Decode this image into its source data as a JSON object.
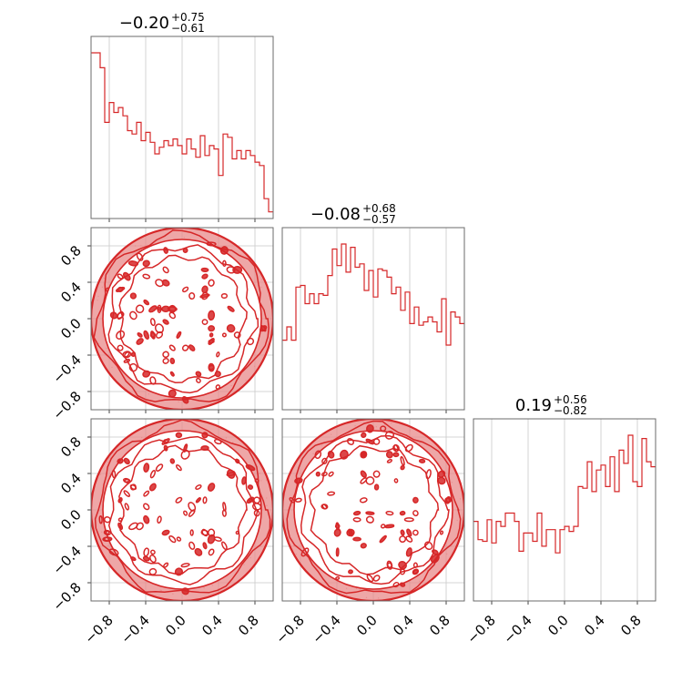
{
  "chart_data": {
    "type": "corner",
    "color": "#d62728",
    "fill_color": "#e8898a",
    "grid": true,
    "range": [
      -1.0,
      1.0
    ],
    "tick_values": [
      -0.8,
      -0.4,
      0.0,
      0.4,
      0.8
    ],
    "tick_labels": [
      "−0.8",
      "−0.4",
      "0.0",
      "0.4",
      "0.8"
    ],
    "parameters": [
      {
        "id": "p0",
        "title_main": "−0.20",
        "title_plus": "+0.75",
        "title_minus": "−0.61"
      },
      {
        "id": "p1",
        "title_main": "−0.08",
        "title_plus": "+0.68",
        "title_minus": "−0.57"
      },
      {
        "id": "p2",
        "title_main": "0.19",
        "title_plus": "+0.56",
        "title_minus": "−0.82"
      }
    ],
    "histograms": [
      {
        "param": "p0",
        "bins": [
          -1.0,
          -0.95,
          -0.9,
          -0.85,
          -0.8,
          -0.75,
          -0.7,
          -0.65,
          -0.6,
          -0.55,
          -0.5,
          -0.45,
          -0.4,
          -0.35,
          -0.3,
          -0.25,
          -0.2,
          -0.15,
          -0.1,
          -0.05,
          0.0,
          0.05,
          0.1,
          0.15,
          0.2,
          0.25,
          0.3,
          0.35,
          0.4,
          0.45,
          0.5,
          0.55,
          0.6,
          0.65,
          0.7,
          0.75,
          0.8,
          0.85,
          0.9,
          0.95,
          1.0
        ],
        "counts": [
          1.0,
          1.0,
          0.91,
          0.58,
          0.7,
          0.64,
          0.67,
          0.62,
          0.53,
          0.51,
          0.58,
          0.47,
          0.52,
          0.46,
          0.39,
          0.43,
          0.47,
          0.44,
          0.48,
          0.44,
          0.39,
          0.48,
          0.42,
          0.37,
          0.5,
          0.38,
          0.44,
          0.42,
          0.26,
          0.51,
          0.49,
          0.36,
          0.41,
          0.36,
          0.41,
          0.38,
          0.34,
          0.32,
          0.12,
          0.04
        ]
      },
      {
        "param": "p1",
        "bins": [
          -1.0,
          -0.95,
          -0.9,
          -0.85,
          -0.8,
          -0.75,
          -0.7,
          -0.65,
          -0.6,
          -0.55,
          -0.5,
          -0.45,
          -0.4,
          -0.35,
          -0.3,
          -0.25,
          -0.2,
          -0.15,
          -0.1,
          -0.05,
          0.0,
          0.05,
          0.1,
          0.15,
          0.2,
          0.25,
          0.3,
          0.35,
          0.4,
          0.45,
          0.5,
          0.55,
          0.6,
          0.65,
          0.7,
          0.75,
          0.8,
          0.85,
          0.9,
          0.95,
          1.0
        ],
        "counts": [
          0.42,
          0.5,
          0.42,
          0.74,
          0.75,
          0.64,
          0.7,
          0.64,
          0.7,
          0.69,
          0.81,
          0.97,
          0.87,
          1.0,
          0.83,
          0.98,
          0.86,
          0.88,
          0.72,
          0.84,
          0.68,
          0.85,
          0.84,
          0.8,
          0.7,
          0.74,
          0.6,
          0.71,
          0.52,
          0.62,
          0.51,
          0.53,
          0.56,
          0.53,
          0.47,
          0.67,
          0.39,
          0.59,
          0.56,
          0.52
        ]
      },
      {
        "param": "p2",
        "bins": [
          -1.0,
          -0.95,
          -0.9,
          -0.85,
          -0.8,
          -0.75,
          -0.7,
          -0.65,
          -0.6,
          -0.55,
          -0.5,
          -0.45,
          -0.4,
          -0.35,
          -0.3,
          -0.25,
          -0.2,
          -0.15,
          -0.1,
          -0.05,
          0.0,
          0.05,
          0.1,
          0.15,
          0.2,
          0.25,
          0.3,
          0.35,
          0.4,
          0.45,
          0.5,
          0.55,
          0.6,
          0.65,
          0.7,
          0.75,
          0.8,
          0.85,
          0.9,
          0.95,
          1.0
        ],
        "counts": [
          0.48,
          0.37,
          0.36,
          0.49,
          0.35,
          0.48,
          0.45,
          0.53,
          0.53,
          0.48,
          0.3,
          0.41,
          0.41,
          0.36,
          0.53,
          0.33,
          0.43,
          0.43,
          0.29,
          0.43,
          0.45,
          0.42,
          0.45,
          0.69,
          0.68,
          0.84,
          0.66,
          0.79,
          0.82,
          0.69,
          0.87,
          0.66,
          0.91,
          0.83,
          1.0,
          0.72,
          0.69,
          0.98,
          0.84,
          0.81
        ]
      }
    ],
    "contour_panels": [
      {
        "x_param": "p0",
        "y_param": "p1",
        "support": "disk",
        "center": [
          0.0,
          0.0
        ],
        "radius": 1.0
      },
      {
        "x_param": "p0",
        "y_param": "p2",
        "support": "disk",
        "center": [
          0.0,
          0.0
        ],
        "radius": 1.0
      },
      {
        "x_param": "p1",
        "y_param": "p2",
        "support": "disk",
        "center": [
          0.0,
          0.0
        ],
        "radius": 1.0
      }
    ]
  }
}
